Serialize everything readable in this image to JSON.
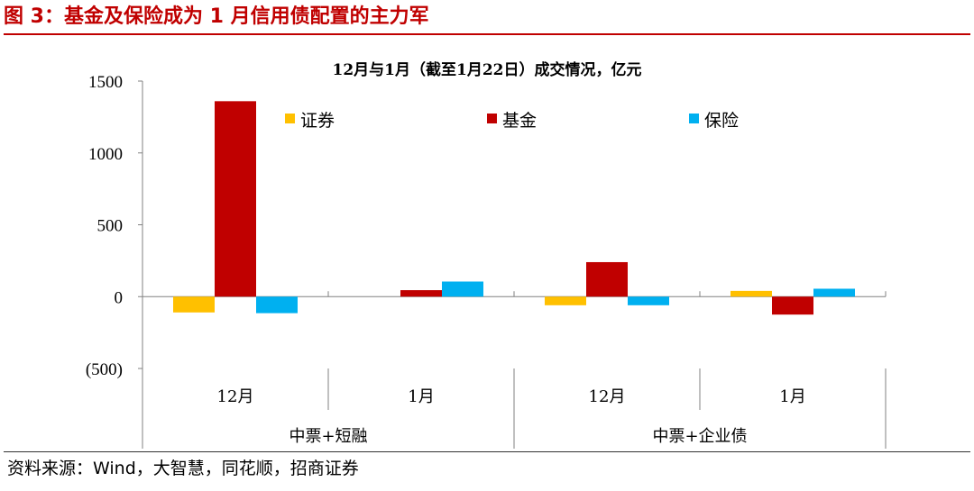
{
  "figure_title": "图 3：基金及保险成为 1 月信用债配置的主力军",
  "source": "资料来源：Wind，大智慧，同花顺，招商证券",
  "chart_data": {
    "type": "bar",
    "title": "12月与1月（截至1月22日）成交情况，亿元",
    "categories": [
      "12月",
      "1月",
      "12月",
      "1月"
    ],
    "groups": [
      {
        "label": "中票+短融",
        "categories": [
          "12月",
          "1月"
        ]
      },
      {
        "label": "中票+企业债",
        "categories": [
          "12月",
          "1月"
        ]
      }
    ],
    "series": [
      {
        "name": "证券",
        "color": "#ffc000",
        "values": [
          -110,
          0,
          -60,
          40
        ]
      },
      {
        "name": "基金",
        "color": "#c00000",
        "values": [
          1360,
          45,
          240,
          -125
        ]
      },
      {
        "name": "保险",
        "color": "#00b0f0",
        "values": [
          -115,
          105,
          -60,
          55
        ]
      }
    ],
    "y_ticks": [
      {
        "value": 1500,
        "label": "1500",
        "color": "#000000"
      },
      {
        "value": 1000,
        "label": "1000",
        "color": "#000000"
      },
      {
        "value": 500,
        "label": "500",
        "color": "#000000"
      },
      {
        "value": 0,
        "label": "0",
        "color": "#000000"
      },
      {
        "value": -500,
        "label": "(500)",
        "color": "#ff0000"
      }
    ],
    "ylim": [
      -500,
      1500
    ],
    "legend_position": "top",
    "grid": false
  }
}
